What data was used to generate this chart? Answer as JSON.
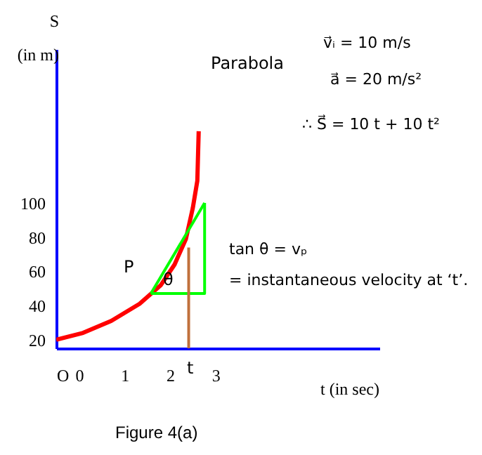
{
  "chart_data": {
    "type": "line",
    "xlabel": "t (in sec)",
    "ylabel": "S\n(in m)",
    "xlim": [
      -0.5,
      6.6
    ],
    "ylim": [
      15,
      190
    ],
    "xticks": [
      {
        "value": -0.5,
        "label": "O"
      },
      0,
      1,
      2,
      3
    ],
    "yticks": [
      20,
      40,
      60,
      80,
      100
    ],
    "grid": false,
    "marker": "none",
    "line_style": "solid",
    "series": [
      {
        "color": "#ff0000",
        "x": [
          -0.5,
          0.09,
          0.71,
          1.33,
          1.8,
          2.1,
          2.35,
          2.5,
          2.6,
          2.63
        ],
        "values": [
          20,
          24,
          31,
          41,
          52,
          64,
          79,
          97,
          113,
          142
        ]
      },
      {
        "color": "#00ff00",
        "x": [
          1.58,
          2.76
        ],
        "values": [
          47,
          100
        ]
      },
      {
        "color": "#00ff00",
        "x": [
          1.58,
          2.76,
          2.76
        ],
        "values": [
          47,
          47,
          100
        ]
      },
      {
        "color": "#c0703c",
        "x": [
          2.41,
          2.41
        ],
        "values": [
          15,
          74
        ]
      }
    ],
    "annotations": [
      "Parabola",
      "P",
      "θ",
      "t",
      "v⃗ᵢ = 10 m/s",
      "a⃗ = 20 m/s²",
      "∴ S⃗ = 10 t + 10 t²",
      "tan θ = vₚ",
      "= instantaneous velocity at ‘t’.",
      "Figure 4(a)"
    ]
  }
}
